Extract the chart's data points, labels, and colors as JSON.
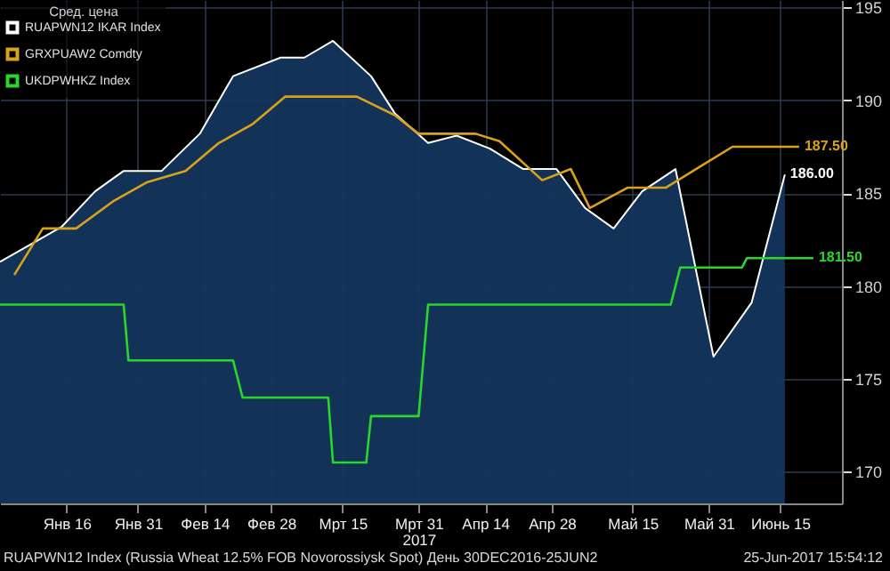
{
  "chart_data": {
    "type": "line",
    "legend_title": "Сред. цена",
    "xlim": [
      "2017-01-02",
      "2017-06-28"
    ],
    "xticks": [
      {
        "value": "2017-01-16",
        "label": "Янв 16"
      },
      {
        "value": "2017-01-31",
        "label": "Янв 31"
      },
      {
        "value": "2017-02-14",
        "label": "Фев 14"
      },
      {
        "value": "2017-02-28",
        "label": "Фев 28"
      },
      {
        "value": "2017-03-15",
        "label": "Мрт 15"
      },
      {
        "value": "2017-03-31",
        "label": "Мрт 31\n2017"
      },
      {
        "value": "2017-04-14",
        "label": "Апр 14"
      },
      {
        "value": "2017-04-28",
        "label": "Апр 28"
      },
      {
        "value": "2017-05-15",
        "label": "Май 15"
      },
      {
        "value": "2017-05-31",
        "label": "Май 31"
      },
      {
        "value": "2017-06-15",
        "label": "Июнь 15"
      }
    ],
    "ylim": [
      168.3,
      195.4
    ],
    "yticks": [
      170,
      175,
      180,
      185,
      190,
      195
    ],
    "grid": true,
    "legend": "top left",
    "series": [
      {
        "name": "RUAPWN12 IKAR Index",
        "type": "area",
        "color": "#ffffff",
        "x": [
          "2017-01-02",
          "2017-01-15",
          "2017-01-22",
          "2017-01-28",
          "2017-02-05",
          "2017-02-13",
          "2017-02-20",
          "2017-03-02",
          "2017-03-07",
          "2017-03-13",
          "2017-03-21",
          "2017-03-26",
          "2017-04-02",
          "2017-04-08",
          "2017-04-15",
          "2017-04-22",
          "2017-04-29",
          "2017-05-05",
          "2017-05-11",
          "2017-05-17",
          "2017-05-24",
          "2017-06-01",
          "2017-06-09",
          "2017-06-16"
        ],
        "values": [
          181.3,
          183.2,
          185.1,
          186.2,
          186.2,
          188.2,
          191.3,
          192.3,
          192.3,
          193.2,
          191.3,
          189.3,
          187.7,
          188.1,
          187.4,
          186.3,
          186.3,
          184.2,
          183.1,
          185.1,
          186.3,
          176.2,
          179.1,
          186.0
        ],
        "value_labels": [
          null,
          null,
          null,
          null,
          null,
          null,
          null,
          null,
          null,
          null,
          null,
          null,
          null,
          null,
          null,
          null,
          null,
          null,
          null,
          null,
          null,
          null,
          null,
          "186.00"
        ]
      },
      {
        "name": "GRXPUAW2 Comdty",
        "color": "#d9a21b",
        "x": [
          "2017-01-05",
          "2017-01-11",
          "2017-01-18",
          "2017-01-26",
          "2017-02-02",
          "2017-02-10",
          "2017-02-17",
          "2017-02-24",
          "2017-03-03",
          "2017-03-18",
          "2017-03-26",
          "2017-03-31",
          "2017-04-05",
          "2017-04-12",
          "2017-04-17",
          "2017-04-26",
          "2017-05-02",
          "2017-05-06",
          "2017-05-14",
          "2017-05-22",
          "2017-05-29",
          "2017-06-05",
          "2017-06-19"
        ],
        "values": [
          180.6,
          183.1,
          183.1,
          184.6,
          185.6,
          186.2,
          187.7,
          188.7,
          190.2,
          190.2,
          189.2,
          188.2,
          188.2,
          188.2,
          187.8,
          185.7,
          186.3,
          184.2,
          185.3,
          185.3,
          186.4,
          187.5,
          187.5
        ],
        "value_labels": [
          null,
          null,
          null,
          null,
          null,
          null,
          null,
          null,
          null,
          null,
          null,
          null,
          null,
          null,
          null,
          null,
          null,
          null,
          null,
          null,
          null,
          null,
          "187.50"
        ]
      },
      {
        "name": "UKDPWHKZ Index",
        "color": "#2bd62b",
        "x": [
          "2017-01-02",
          "2017-01-28",
          "2017-01-29",
          "2017-02-20",
          "2017-02-22",
          "2017-03-12",
          "2017-03-13",
          "2017-03-20",
          "2017-03-21",
          "2017-03-31",
          "2017-04-02",
          "2017-05-23",
          "2017-05-25",
          "2017-06-07",
          "2017-06-08",
          "2017-06-22"
        ],
        "values": [
          179,
          179,
          176,
          176,
          174,
          174,
          170.5,
          170.5,
          173,
          173,
          179,
          179,
          181,
          181,
          181.5,
          181.5
        ],
        "value_labels": [
          null,
          null,
          null,
          null,
          null,
          null,
          null,
          null,
          null,
          null,
          null,
          null,
          null,
          null,
          null,
          "181.50"
        ]
      }
    ],
    "annotations": [
      "RUAPWN12 Index (Russia Wheat 12.5% FOB Novorossiysk Spot)  День 30DEC2016-25JUN2",
      "25-Jun-2017 15:54:12"
    ]
  }
}
